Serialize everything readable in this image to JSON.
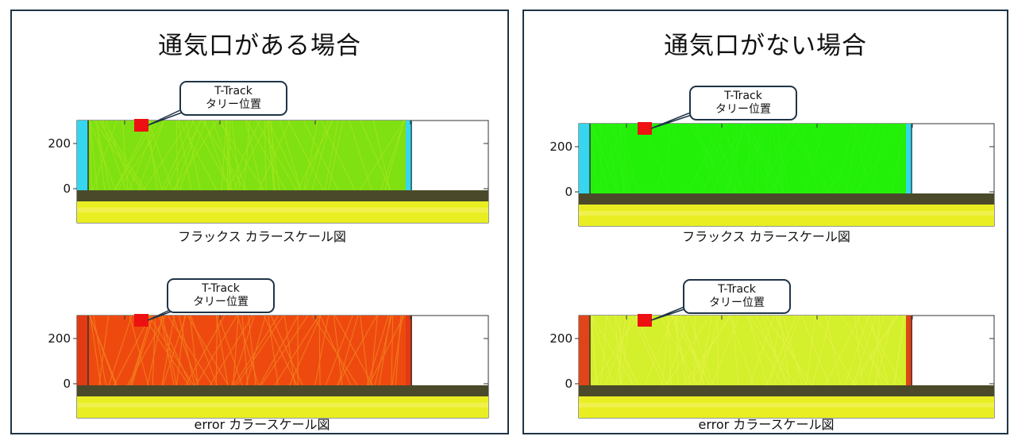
{
  "panels": [
    {
      "title": "通気口がある場合",
      "callout_1": {
        "line1": "T-Track",
        "line2": "タリー位置"
      },
      "callout_2": {
        "line1": "T-Track",
        "line2": "タリー位置"
      },
      "caption_flux": "フラックス カラースケール図",
      "caption_error": "error カラースケール図",
      "y_ticks": [
        "200",
        "0"
      ],
      "flux_colors": {
        "field": "#7fe012",
        "field_hi": "#b6ec1f",
        "side": "#35d6ee"
      },
      "error_colors": {
        "field": "#ee4a10",
        "field_hi": "#f7a323",
        "side": "#e13a14"
      }
    },
    {
      "title": "通気口がない場合",
      "callout_1": {
        "line1": "T-Track",
        "line2": "タリー位置"
      },
      "callout_2": {
        "line1": "T-Track",
        "line2": "タリー位置"
      },
      "caption_flux": "フラックス カラースケール図",
      "caption_error": "error カラースケール図",
      "y_ticks": [
        "200",
        "0"
      ],
      "flux_colors": {
        "field": "#22f008",
        "field_hi": "#33f21a",
        "side": "#35d6ee"
      },
      "error_colors": {
        "field": "#d4ef2b",
        "field_hi": "#ecf55a",
        "side": "#e04418"
      }
    }
  ],
  "colors": {
    "frame": "#1f3447",
    "marker": "#ee1111",
    "floor_band": "#4a4a2a",
    "ground": "#e9ee22",
    "ground_hi": "#f5f36a"
  }
}
